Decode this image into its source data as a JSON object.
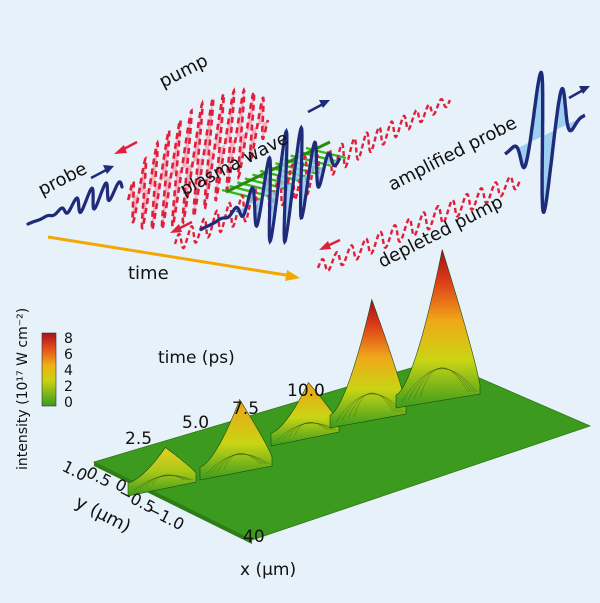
{
  "labels": {
    "pump": "pump",
    "probe": "probe",
    "plasma_wave": "plasma wave",
    "amplified_probe": "amplified probe",
    "depleted_pump": "depleted pump",
    "time": "time"
  },
  "surface_plot": {
    "time_axis_label": "time (ps)",
    "time_ticks": [
      "2.5",
      "5.0",
      "7.5",
      "10.0"
    ],
    "y_axis_label": "y (μm)",
    "y_ticks": [
      "1.0",
      "0.5",
      "0",
      "−0.5",
      "−1.0"
    ],
    "x_axis_label": "x (μm)",
    "x_ticks": [
      "40"
    ],
    "colorbar_label": "intensity (10¹⁷ W cm⁻²)",
    "colorbar_ticks": [
      "8",
      "6",
      "4",
      "2",
      "0"
    ]
  },
  "colors": {
    "background": "#e6f1f9",
    "probe_wave": "#1f2a7a",
    "pump_wave": "#e0203a",
    "pump_fill": "#f4a6b8",
    "plasma_wave": "#38b818",
    "time_arrow": "#f2a800",
    "surface_base": "#3c9a1e"
  }
}
